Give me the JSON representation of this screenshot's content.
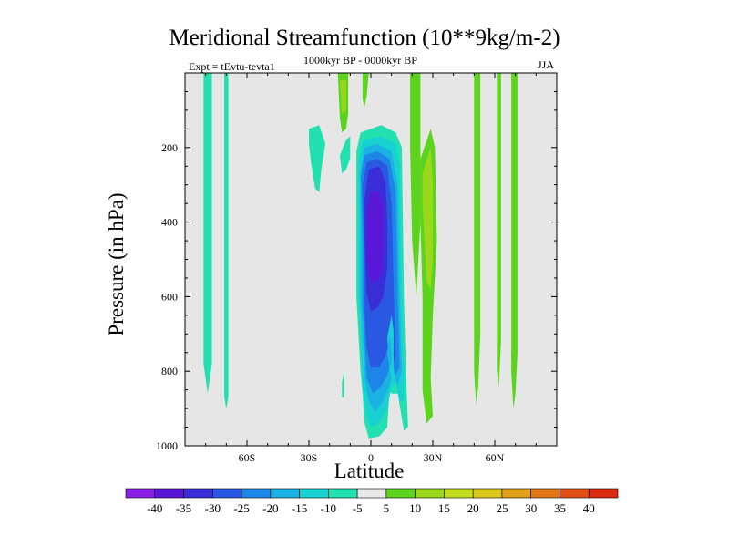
{
  "title": "Meridional Streamfunction (10**9kg/m-2)",
  "subtitle": "1000kyr BP - 0000kyr BP",
  "experiment": "Expt = tEvtu-tevta1",
  "season": "JJA",
  "chart_data": {
    "type": "contour",
    "title": "Meridional Streamfunction (10**9kg/m-2)",
    "xlabel": "Latitude",
    "ylabel": "Pressure (in hPa)",
    "xlim": [
      -90,
      90
    ],
    "ylim": [
      1000,
      0
    ],
    "x_ticks": [
      {
        "value": -60,
        "label": "60S"
      },
      {
        "value": -30,
        "label": "30S"
      },
      {
        "value": 0,
        "label": "0"
      },
      {
        "value": 30,
        "label": "30N"
      },
      {
        "value": 60,
        "label": "60N"
      }
    ],
    "y_ticks": [
      {
        "value": 200,
        "label": "200"
      },
      {
        "value": 400,
        "label": "400"
      },
      {
        "value": 600,
        "label": "600"
      },
      {
        "value": 800,
        "label": "800"
      },
      {
        "value": 1000,
        "label": "1000"
      }
    ],
    "contour_levels": [
      -40,
      -35,
      -30,
      -25,
      -20,
      -15,
      -10,
      -5,
      5,
      10,
      15,
      20,
      25,
      30,
      35,
      40
    ],
    "colorbar": {
      "colors": [
        "#8a1fe6",
        "#5b17d8",
        "#3a2ed8",
        "#2a58e2",
        "#1d86e8",
        "#1ab2e2",
        "#18d2d2",
        "#22e0b0",
        "#e8e8e8",
        "#5cd41e",
        "#9ad81c",
        "#c2dc1e",
        "#dcc81c",
        "#e0a01a",
        "#e07818",
        "#e05014",
        "#dc2c10"
      ],
      "labels": [
        "-40",
        "-35",
        "-30",
        "-25",
        "-20",
        "-15",
        "-10",
        "-5",
        "5",
        "10",
        "15",
        "20",
        "25",
        "30",
        "35",
        "40"
      ]
    },
    "regions": [
      {
        "level": -5,
        "color": "#22e0b0",
        "polygon": [
          [
            -81,
            0
          ],
          [
            -77,
            0
          ],
          [
            -77,
            780
          ],
          [
            -79,
            860
          ],
          [
            -81,
            780
          ]
        ]
      },
      {
        "level": -5,
        "color": "#22e0b0",
        "polygon": [
          [
            -71,
            0
          ],
          [
            -69,
            0
          ],
          [
            -69,
            870
          ],
          [
            -70,
            900
          ],
          [
            -71,
            870
          ]
        ]
      },
      {
        "level": -5,
        "color": "#22e0b0",
        "polygon": [
          [
            -30,
            150
          ],
          [
            -25,
            140
          ],
          [
            -22,
            190
          ],
          [
            -24,
            260
          ],
          [
            -25,
            320
          ],
          [
            -27,
            310
          ],
          [
            -29,
            240
          ],
          [
            -30,
            190
          ]
        ]
      },
      {
        "level": -5,
        "color": "#22e0b0",
        "polygon": [
          [
            -15,
            220
          ],
          [
            -12,
            180
          ],
          [
            -10,
            170
          ],
          [
            -10,
            230
          ],
          [
            -12,
            260
          ],
          [
            -14,
            270
          ]
        ]
      },
      {
        "level": -5,
        "color": "#22e0b0",
        "polygon": [
          [
            -14,
            830
          ],
          [
            -13,
            800
          ],
          [
            -13,
            870
          ],
          [
            -14,
            870
          ]
        ]
      },
      {
        "level": -5,
        "color": "#22e0b0",
        "polygon": [
          [
            -7,
            210
          ],
          [
            -5,
            160
          ],
          [
            5,
            140
          ],
          [
            12,
            160
          ],
          [
            15,
            200
          ],
          [
            16,
            600
          ],
          [
            17,
            800
          ],
          [
            18,
            950
          ],
          [
            16,
            960
          ],
          [
            13,
            860
          ],
          [
            10,
            860
          ],
          [
            9,
            850
          ],
          [
            8,
            950
          ],
          [
            4,
            975
          ],
          [
            -1,
            980
          ],
          [
            -3,
            940
          ],
          [
            -4,
            860
          ],
          [
            -5,
            800
          ],
          [
            -6,
            700
          ],
          [
            -7,
            600
          ],
          [
            -7,
            400
          ]
        ]
      },
      {
        "level": -10,
        "color": "#18d2d2",
        "polygon": [
          [
            -6,
            240
          ],
          [
            -4,
            180
          ],
          [
            5,
            170
          ],
          [
            12,
            190
          ],
          [
            14,
            250
          ],
          [
            15,
            600
          ],
          [
            16,
            800
          ],
          [
            16,
            880
          ],
          [
            14,
            880
          ],
          [
            12,
            830
          ],
          [
            10,
            840
          ],
          [
            8,
            900
          ],
          [
            4,
            940
          ],
          [
            0,
            950
          ],
          [
            -2,
            920
          ],
          [
            -4,
            850
          ],
          [
            -5,
            700
          ],
          [
            -6,
            600
          ],
          [
            -6,
            400
          ]
        ]
      },
      {
        "level": -15,
        "color": "#1ab2e2",
        "polygon": [
          [
            -5,
            260
          ],
          [
            -3,
            200
          ],
          [
            3,
            190
          ],
          [
            10,
            210
          ],
          [
            13,
            300
          ],
          [
            14,
            600
          ],
          [
            15,
            800
          ],
          [
            13,
            840
          ],
          [
            11,
            800
          ],
          [
            9,
            840
          ],
          [
            6,
            880
          ],
          [
            2,
            910
          ],
          [
            -1,
            880
          ],
          [
            -3,
            820
          ],
          [
            -4,
            700
          ],
          [
            -5,
            600
          ],
          [
            -5,
            400
          ]
        ]
      },
      {
        "level": -20,
        "color": "#1d86e8",
        "polygon": [
          [
            -5,
            280
          ],
          [
            -3,
            220
          ],
          [
            3,
            210
          ],
          [
            9,
            230
          ],
          [
            12,
            320
          ],
          [
            13,
            600
          ],
          [
            14,
            790
          ],
          [
            12,
            810
          ],
          [
            10,
            770
          ],
          [
            8,
            810
          ],
          [
            5,
            840
          ],
          [
            1,
            860
          ],
          [
            -2,
            820
          ],
          [
            -3,
            720
          ],
          [
            -4,
            620
          ],
          [
            -4,
            450
          ]
        ]
      },
      {
        "level": -25,
        "color": "#2a58e2",
        "polygon": [
          [
            -4,
            300
          ],
          [
            -2,
            240
          ],
          [
            3,
            230
          ],
          [
            8,
            250
          ],
          [
            10,
            350
          ],
          [
            11,
            560
          ],
          [
            12,
            760
          ],
          [
            11,
            780
          ],
          [
            9,
            720
          ],
          [
            7,
            760
          ],
          [
            4,
            790
          ],
          [
            0,
            790
          ],
          [
            -2,
            740
          ],
          [
            -3,
            640
          ],
          [
            -3,
            450
          ]
        ]
      },
      {
        "level": -30,
        "color": "#3a2ed8",
        "polygon": [
          [
            -3,
            340
          ],
          [
            -1,
            260
          ],
          [
            4,
            250
          ],
          [
            7,
            290
          ],
          [
            8,
            400
          ],
          [
            8,
            520
          ],
          [
            6,
            600
          ],
          [
            3,
            630
          ],
          [
            0,
            640
          ],
          [
            -2,
            590
          ],
          [
            -3,
            460
          ]
        ]
      },
      {
        "level": -35,
        "color": "#5b17d8",
        "polygon": [
          [
            -2,
            380
          ],
          [
            0,
            320
          ],
          [
            4,
            320
          ],
          [
            6,
            360
          ],
          [
            6,
            480
          ],
          [
            5,
            540
          ],
          [
            3,
            560
          ],
          [
            0,
            560
          ],
          [
            -2,
            510
          ]
        ]
      },
      {
        "level": -10,
        "color": "#18d2d2",
        "polygon": [
          [
            8,
            710
          ],
          [
            10,
            650
          ],
          [
            11,
            690
          ],
          [
            11,
            800
          ],
          [
            10,
            820
          ],
          [
            9,
            790
          ]
        ]
      },
      {
        "level": -15,
        "color": "#1ab2e2",
        "polygon": [
          [
            8,
            750
          ],
          [
            9,
            700
          ],
          [
            10,
            740
          ],
          [
            10,
            780
          ],
          [
            9,
            790
          ]
        ]
      },
      {
        "level": 5,
        "color": "#5cd41e",
        "polygon": [
          [
            -16,
            0
          ],
          [
            -11,
            0
          ],
          [
            -11,
            110
          ],
          [
            -12,
            150
          ],
          [
            -14,
            160
          ],
          [
            -15,
            120
          ]
        ]
      },
      {
        "level": 10,
        "color": "#9ad81c",
        "polygon": [
          [
            -15,
            20
          ],
          [
            -12,
            20
          ],
          [
            -12,
            100
          ],
          [
            -14,
            110
          ]
        ]
      },
      {
        "level": 5,
        "color": "#5cd41e",
        "polygon": [
          [
            -4,
            0
          ],
          [
            -1,
            0
          ],
          [
            -2,
            60
          ],
          [
            -3,
            90
          ],
          [
            -4,
            70
          ]
        ]
      },
      {
        "level": 5,
        "color": "#5cd41e",
        "polygon": [
          [
            19,
            0
          ],
          [
            24,
            0
          ],
          [
            24,
            400
          ],
          [
            22,
            600
          ],
          [
            20,
            450
          ],
          [
            19,
            200
          ]
        ]
      },
      {
        "level": 5,
        "color": "#5cd41e",
        "polygon": [
          [
            24,
            230
          ],
          [
            29,
            150
          ],
          [
            31,
            200
          ],
          [
            32,
            450
          ],
          [
            30,
            650
          ],
          [
            29,
            820
          ],
          [
            30,
            920
          ],
          [
            27,
            940
          ],
          [
            25,
            850
          ],
          [
            25,
            600
          ],
          [
            24,
            400
          ]
        ]
      },
      {
        "level": 10,
        "color": "#9ad81c",
        "polygon": [
          [
            25,
            270
          ],
          [
            29,
            200
          ],
          [
            30,
            300
          ],
          [
            30,
            500
          ],
          [
            29,
            580
          ],
          [
            27,
            560
          ],
          [
            26,
            450
          ],
          [
            25,
            350
          ]
        ]
      },
      {
        "level": 5,
        "color": "#5cd41e",
        "polygon": [
          [
            50,
            0
          ],
          [
            53,
            0
          ],
          [
            53,
            700
          ],
          [
            52,
            840
          ],
          [
            51,
            890
          ],
          [
            50,
            800
          ]
        ]
      },
      {
        "level": 5,
        "color": "#5cd41e",
        "polygon": [
          [
            61,
            0
          ],
          [
            63,
            0
          ],
          [
            63,
            720
          ],
          [
            62,
            840
          ],
          [
            61,
            800
          ]
        ]
      },
      {
        "level": 5,
        "color": "#5cd41e",
        "polygon": [
          [
            68,
            0
          ],
          [
            71,
            0
          ],
          [
            71,
            750
          ],
          [
            70,
            860
          ],
          [
            69,
            900
          ],
          [
            68,
            800
          ]
        ]
      }
    ]
  }
}
